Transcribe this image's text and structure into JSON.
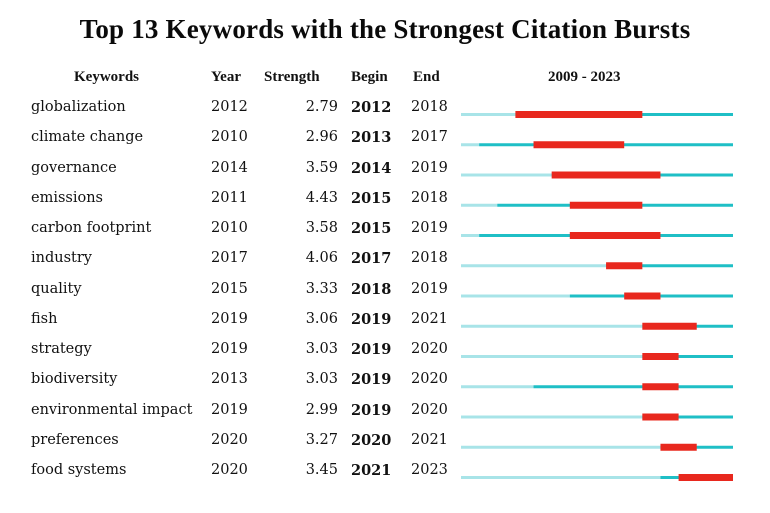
{
  "chart_data": {
    "type": "table",
    "title": "Top 13 Keywords with the Strongest Citation Bursts",
    "columns": [
      "Keywords",
      "Year",
      "Strength",
      "Begin",
      "End",
      "2009 - 2023"
    ],
    "timeline_start": 2009,
    "timeline_end": 2023,
    "colors": {
      "burst": "#e8281e",
      "active": "#1fbfc6",
      "before": "#a8e4e8"
    },
    "rows": [
      {
        "keyword": "globalization",
        "year": 2012,
        "strength": "2.79",
        "begin": 2012,
        "end": 2018
      },
      {
        "keyword": "climate change",
        "year": 2010,
        "strength": "2.96",
        "begin": 2013,
        "end": 2017
      },
      {
        "keyword": "governance",
        "year": 2014,
        "strength": "3.59",
        "begin": 2014,
        "end": 2019
      },
      {
        "keyword": "emissions",
        "year": 2011,
        "strength": "4.43",
        "begin": 2015,
        "end": 2018
      },
      {
        "keyword": "carbon footprint",
        "year": 2010,
        "strength": "3.58",
        "begin": 2015,
        "end": 2019
      },
      {
        "keyword": "industry",
        "year": 2017,
        "strength": "4.06",
        "begin": 2017,
        "end": 2018
      },
      {
        "keyword": "quality",
        "year": 2015,
        "strength": "3.33",
        "begin": 2018,
        "end": 2019
      },
      {
        "keyword": "fish",
        "year": 2019,
        "strength": "3.06",
        "begin": 2019,
        "end": 2021
      },
      {
        "keyword": "strategy",
        "year": 2019,
        "strength": "3.03",
        "begin": 2019,
        "end": 2020
      },
      {
        "keyword": "biodiversity",
        "year": 2013,
        "strength": "3.03",
        "begin": 2019,
        "end": 2020
      },
      {
        "keyword": "environmental impact",
        "year": 2019,
        "strength": "2.99",
        "begin": 2019,
        "end": 2020
      },
      {
        "keyword": "preferences",
        "year": 2020,
        "strength": "3.27",
        "begin": 2020,
        "end": 2021
      },
      {
        "keyword": "food systems",
        "year": 2020,
        "strength": "3.45",
        "begin": 2021,
        "end": 2023
      }
    ]
  }
}
